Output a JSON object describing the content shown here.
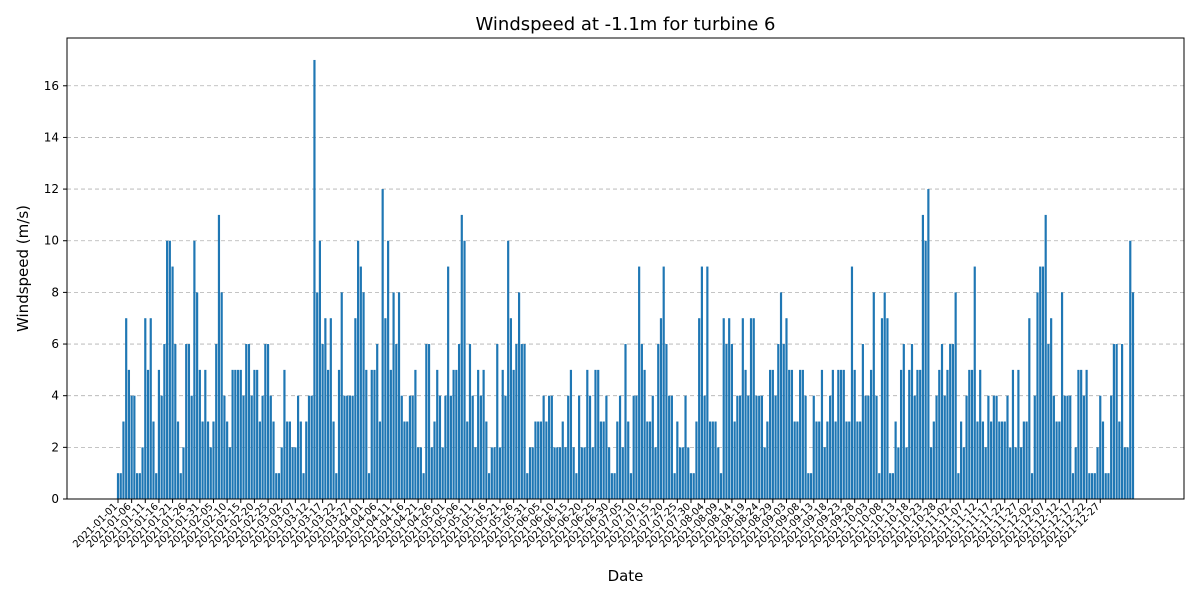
{
  "chart_data": {
    "type": "bar",
    "title": "Windspeed at -1.1m for turbine 6",
    "xlabel": "Date",
    "ylabel": "Windspeed (m/s)",
    "ylim": [
      0,
      17.85
    ],
    "yticks": [
      0,
      2,
      4,
      6,
      8,
      10,
      12,
      14,
      16
    ],
    "grid": "y-dashed",
    "bar_color": "#1f77b4",
    "x_tick_labels": [
      "2021-01-01",
      "2021-01-06",
      "2021-01-11",
      "2021-01-16",
      "2021-01-21",
      "2021-01-26",
      "2021-01-31",
      "2021-02-05",
      "2021-02-10",
      "2021-02-15",
      "2021-02-20",
      "2021-02-25",
      "2021-03-02",
      "2021-03-07",
      "2021-03-12",
      "2021-03-17",
      "2021-03-22",
      "2021-03-27",
      "2021-04-01",
      "2021-04-06",
      "2021-04-11",
      "2021-04-16",
      "2021-04-21",
      "2021-04-26",
      "2021-05-01",
      "2021-05-06",
      "2021-05-11",
      "2021-05-16",
      "2021-05-21",
      "2021-05-26",
      "2021-05-31",
      "2021-06-05",
      "2021-06-10",
      "2021-06-15",
      "2021-06-20",
      "2021-06-25",
      "2021-06-30",
      "2021-07-05",
      "2021-07-10",
      "2021-07-15",
      "2021-07-20",
      "2021-07-25",
      "2021-07-30",
      "2021-08-04",
      "2021-08-09",
      "2021-08-14",
      "2021-08-19",
      "2021-08-24",
      "2021-08-29",
      "2021-09-03",
      "2021-09-08",
      "2021-09-13",
      "2021-09-18",
      "2021-09-23",
      "2021-09-28",
      "2021-10-03",
      "2021-10-08",
      "2021-10-13",
      "2021-10-18",
      "2021-10-23",
      "2021-10-28",
      "2021-11-02",
      "2021-11-07",
      "2021-11-12",
      "2021-11-17",
      "2021-11-22",
      "2021-11-27",
      "2021-12-02",
      "2021-12-07",
      "2021-12-12",
      "2021-12-17",
      "2021-12-22",
      "2021-12-27"
    ],
    "x_start": "2021-01-01",
    "values": [
      1,
      1,
      3,
      7,
      5,
      4,
      4,
      1,
      1,
      2,
      7,
      5,
      7,
      3,
      1,
      5,
      4,
      6,
      10,
      10,
      9,
      6,
      3,
      1,
      2,
      6,
      6,
      4,
      10,
      8,
      5,
      3,
      5,
      3,
      2,
      3,
      6,
      11,
      8,
      4,
      3,
      2,
      5,
      5,
      5,
      5,
      4,
      6,
      6,
      4,
      5,
      5,
      3,
      4,
      6,
      6,
      4,
      3,
      1,
      1,
      2,
      5,
      3,
      3,
      2,
      2,
      4,
      3,
      1,
      3,
      4,
      4,
      17,
      8,
      10,
      6,
      7,
      5,
      7,
      3,
      1,
      5,
      8,
      4,
      4,
      4,
      4,
      7,
      10,
      9,
      8,
      5,
      1,
      5,
      5,
      6,
      3,
      12,
      7,
      10,
      5,
      8,
      6,
      8,
      4,
      3,
      3,
      4,
      4,
      5,
      2,
      2,
      1,
      6,
      6,
      2,
      3,
      5,
      4,
      2,
      4,
      9,
      4,
      5,
      5,
      6,
      11,
      10,
      3,
      6,
      4,
      2,
      5,
      4,
      5,
      3,
      1,
      2,
      2,
      6,
      2,
      5,
      4,
      10,
      7,
      5,
      6,
      8,
      6,
      6,
      1,
      2,
      2,
      3,
      3,
      3,
      4,
      3,
      4,
      4,
      2,
      2,
      2,
      3,
      2,
      4,
      5,
      2,
      1,
      4,
      2,
      2,
      5,
      4,
      2,
      5,
      5,
      3,
      3,
      4,
      2,
      1,
      1,
      3,
      4,
      2,
      6,
      3,
      1,
      4,
      4,
      9,
      6,
      5,
      3,
      3,
      4,
      2,
      6,
      7,
      9,
      6,
      4,
      4,
      1,
      3,
      2,
      2,
      4,
      2,
      1,
      1,
      3,
      7,
      9,
      4,
      9,
      3,
      3,
      3,
      2,
      1,
      7,
      6,
      7,
      6,
      3,
      4,
      4,
      7,
      5,
      4,
      7,
      7,
      4,
      4,
      4,
      2,
      3,
      5,
      5,
      4,
      6,
      8,
      6,
      7,
      5,
      5,
      3,
      3,
      5,
      5,
      4,
      1,
      1,
      4,
      3,
      3,
      5,
      2,
      3,
      4,
      5,
      3,
      5,
      5,
      5,
      3,
      3,
      9,
      5,
      3,
      3,
      6,
      4,
      4,
      5,
      8,
      4,
      1,
      7,
      8,
      7,
      1,
      1,
      3,
      2,
      5,
      6,
      2,
      5,
      6,
      4,
      5,
      5,
      11,
      10,
      12,
      2,
      3,
      4,
      5,
      6,
      4,
      5,
      6,
      6,
      8,
      1,
      3,
      2,
      4,
      5,
      5,
      9,
      3,
      5,
      3,
      2,
      4,
      3,
      4,
      4,
      3,
      3,
      3,
      4,
      2,
      5,
      2,
      5,
      2,
      3,
      3,
      7,
      1,
      4,
      8,
      9,
      9,
      11,
      6,
      7,
      4,
      3,
      3,
      8,
      4,
      4,
      4,
      1,
      2,
      5,
      5,
      4,
      5,
      1,
      1,
      1,
      2,
      4,
      3,
      1,
      1,
      4,
      6,
      6,
      3,
      6,
      2,
      2,
      10,
      8
    ]
  }
}
